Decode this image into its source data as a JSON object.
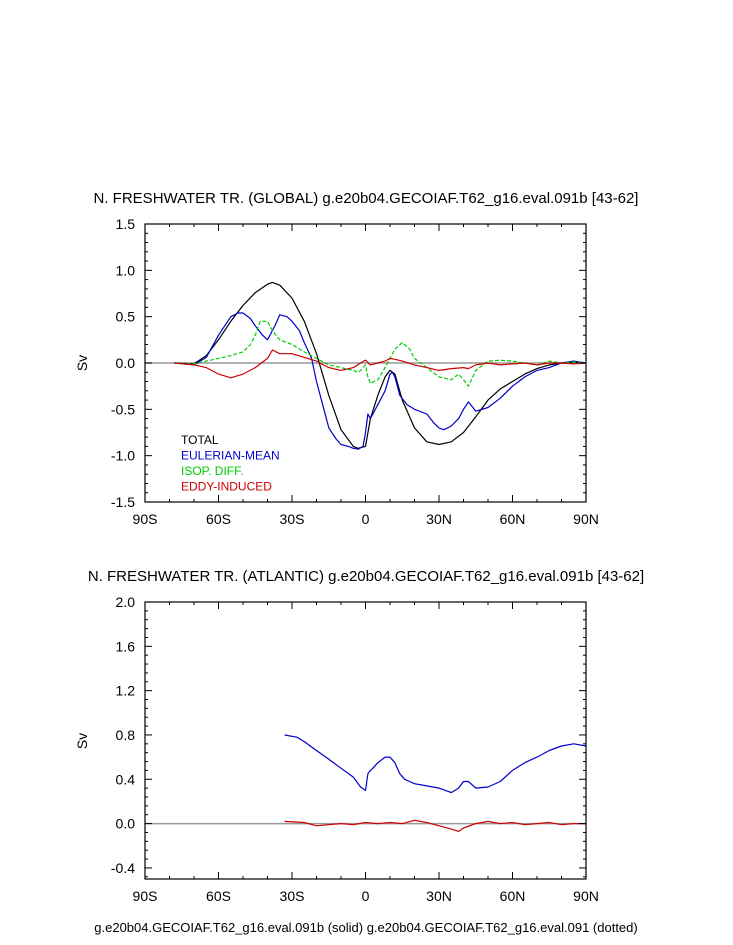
{
  "chart_data": [
    {
      "type": "line",
      "title": "N. FRESHWATER TR. (GLOBAL) g.e20b04.GECOIAF.T62_g16.eval.091b [43-62]",
      "xlabel": "",
      "ylabel": "Sv",
      "xlim": [
        -90,
        90
      ],
      "ylim": [
        -1.5,
        1.5
      ],
      "xticks": [
        -90,
        -60,
        -30,
        0,
        30,
        60,
        90
      ],
      "xtick_labels": [
        "90S",
        "60S",
        "30S",
        "0",
        "30N",
        "60N",
        "90N"
      ],
      "yticks": [
        -1.5,
        -1.0,
        -0.5,
        0.0,
        0.5,
        1.0,
        1.5
      ],
      "ytick_labels": [
        "-1.5",
        "-1.0",
        "-0.5",
        "0.0",
        "0.5",
        "1.0",
        "1.5"
      ],
      "zero_line": true,
      "legend_position": "lower-left",
      "series": [
        {
          "name": "TOTAL",
          "color": "#000000",
          "style": "solid",
          "x": [
            -78,
            -70,
            -65,
            -60,
            -55,
            -50,
            -45,
            -40,
            -38,
            -35,
            -30,
            -25,
            -20,
            -15,
            -10,
            -5,
            -3,
            0,
            2,
            5,
            8,
            10,
            12,
            15,
            20,
            25,
            30,
            35,
            40,
            45,
            50,
            55,
            60,
            65,
            70,
            75,
            80,
            85,
            90
          ],
          "y": [
            0,
            -0.01,
            0.08,
            0.25,
            0.45,
            0.62,
            0.76,
            0.85,
            0.87,
            0.84,
            0.7,
            0.45,
            0.1,
            -0.35,
            -0.72,
            -0.9,
            -0.92,
            -0.9,
            -0.6,
            -0.35,
            -0.15,
            -0.08,
            -0.12,
            -0.4,
            -0.7,
            -0.85,
            -0.88,
            -0.85,
            -0.75,
            -0.58,
            -0.4,
            -0.28,
            -0.2,
            -0.12,
            -0.06,
            -0.02,
            0.0,
            0.01,
            0.0
          ]
        },
        {
          "name": "EULERIAN-MEAN",
          "color": "#0000cc",
          "style": "solid",
          "x": [
            -78,
            -70,
            -65,
            -60,
            -55,
            -52,
            -50,
            -47,
            -45,
            -42,
            -40,
            -37,
            -35,
            -32,
            -30,
            -27,
            -25,
            -22,
            -20,
            -17,
            -15,
            -12,
            -10,
            -7,
            -5,
            -3,
            -1,
            0,
            1,
            2,
            3,
            5,
            8,
            10,
            11,
            12,
            14,
            17,
            20,
            25,
            28,
            30,
            32,
            35,
            38,
            40,
            42,
            45,
            50,
            55,
            60,
            65,
            70,
            75,
            80,
            85,
            90
          ],
          "y": [
            0,
            -0.02,
            0.06,
            0.3,
            0.5,
            0.54,
            0.54,
            0.48,
            0.4,
            0.3,
            0.25,
            0.4,
            0.52,
            0.5,
            0.45,
            0.35,
            0.22,
            0.05,
            -0.2,
            -0.5,
            -0.7,
            -0.82,
            -0.88,
            -0.9,
            -0.92,
            -0.93,
            -0.9,
            -0.75,
            -0.55,
            -0.6,
            -0.55,
            -0.45,
            -0.3,
            -0.12,
            -0.1,
            -0.15,
            -0.35,
            -0.45,
            -0.5,
            -0.55,
            -0.65,
            -0.7,
            -0.72,
            -0.68,
            -0.6,
            -0.5,
            -0.42,
            -0.52,
            -0.48,
            -0.38,
            -0.25,
            -0.15,
            -0.08,
            -0.05,
            0.0,
            0.02,
            0.0
          ]
        },
        {
          "name": "ISOP. DIFF.",
          "color": "#00cc00",
          "style": "dashed",
          "x": [
            -78,
            -70,
            -65,
            -60,
            -55,
            -50,
            -47,
            -45,
            -43,
            -40,
            -38,
            -35,
            -30,
            -25,
            -20,
            -15,
            -10,
            -5,
            -3,
            -2,
            -1,
            0,
            1,
            2,
            5,
            8,
            10,
            12,
            15,
            18,
            20,
            25,
            30,
            35,
            38,
            40,
            42,
            45,
            50,
            55,
            60,
            65,
            70,
            75,
            80,
            85,
            90
          ],
          "y": [
            0,
            -0.01,
            0.02,
            0.05,
            0.08,
            0.12,
            0.2,
            0.3,
            0.45,
            0.45,
            0.35,
            0.25,
            0.2,
            0.12,
            0.05,
            -0.02,
            -0.05,
            -0.08,
            -0.1,
            -0.08,
            -0.05,
            -0.02,
            -0.15,
            -0.22,
            -0.18,
            -0.05,
            0.05,
            0.15,
            0.22,
            0.15,
            0.05,
            -0.05,
            -0.15,
            -0.18,
            -0.12,
            -0.18,
            -0.25,
            -0.08,
            0.02,
            0.03,
            0.02,
            0.0,
            -0.02,
            0.02,
            0.0,
            0.01,
            0.0
          ]
        },
        {
          "name": "EDDY-INDUCED",
          "color": "#cc0000",
          "style": "solid",
          "x": [
            -78,
            -70,
            -65,
            -60,
            -55,
            -50,
            -45,
            -40,
            -38,
            -35,
            -30,
            -25,
            -20,
            -15,
            -10,
            -5,
            -2,
            0,
            2,
            5,
            8,
            10,
            12,
            15,
            20,
            25,
            30,
            35,
            40,
            42,
            45,
            50,
            55,
            60,
            65,
            70,
            75,
            80,
            85,
            90
          ],
          "y": [
            0,
            -0.02,
            -0.05,
            -0.12,
            -0.16,
            -0.12,
            -0.05,
            0.05,
            0.14,
            0.1,
            0.1,
            0.06,
            0.02,
            -0.05,
            -0.08,
            -0.05,
            0.0,
            0.03,
            -0.02,
            0.0,
            0.02,
            0.05,
            0.04,
            0.02,
            -0.02,
            -0.05,
            -0.08,
            -0.06,
            -0.05,
            -0.06,
            -0.02,
            0.0,
            -0.02,
            -0.01,
            0.0,
            -0.02,
            0.0,
            0.0,
            -0.01,
            0.0
          ]
        }
      ]
    },
    {
      "type": "line",
      "title": "N. FRESHWATER TR. (ATLANTIC) g.e20b04.GECOIAF.T62_g16.eval.091b [43-62]",
      "xlabel": "",
      "ylabel": "Sv",
      "xlim": [
        -90,
        90
      ],
      "ylim": [
        -0.5,
        2.0
      ],
      "xticks": [
        -90,
        -60,
        -30,
        0,
        30,
        60,
        90
      ],
      "xtick_labels": [
        "90S",
        "60S",
        "30S",
        "0",
        "30N",
        "60N",
        "90N"
      ],
      "yticks": [
        -0.4,
        0.0,
        0.4,
        0.8,
        1.2,
        1.6,
        2.0
      ],
      "ytick_labels": [
        "-0.4",
        "0.0",
        "0.4",
        "0.8",
        "1.2",
        "1.6",
        "2.0"
      ],
      "zero_line": true,
      "series": [
        {
          "name": "",
          "color": "#0000cc",
          "style": "solid",
          "x": [
            -33,
            -28,
            -25,
            -20,
            -15,
            -10,
            -5,
            -2,
            0,
            1,
            2,
            3,
            5,
            8,
            10,
            12,
            14,
            16,
            18,
            20,
            25,
            30,
            35,
            38,
            40,
            42,
            45,
            50,
            55,
            60,
            65,
            68,
            70,
            75,
            80,
            85,
            90
          ],
          "y": [
            0.8,
            0.78,
            0.74,
            0.66,
            0.58,
            0.5,
            0.42,
            0.33,
            0.3,
            0.45,
            0.48,
            0.5,
            0.55,
            0.6,
            0.6,
            0.55,
            0.45,
            0.4,
            0.38,
            0.36,
            0.34,
            0.32,
            0.28,
            0.32,
            0.38,
            0.38,
            0.32,
            0.33,
            0.38,
            0.48,
            0.55,
            0.58,
            0.6,
            0.66,
            0.7,
            0.72,
            0.7
          ]
        },
        {
          "name": "",
          "color": "#cc0000",
          "style": "solid",
          "x": [
            -33,
            -25,
            -20,
            -15,
            -10,
            -5,
            0,
            5,
            10,
            15,
            20,
            25,
            30,
            35,
            38,
            40,
            45,
            50,
            55,
            60,
            65,
            70,
            75,
            80,
            85,
            90
          ],
          "y": [
            0.02,
            0.01,
            -0.02,
            -0.01,
            0.0,
            -0.01,
            0.01,
            0.0,
            0.01,
            0.0,
            0.03,
            0.01,
            -0.02,
            -0.05,
            -0.07,
            -0.04,
            0.0,
            0.02,
            0.0,
            0.01,
            -0.01,
            0.0,
            0.01,
            -0.01,
            0.0,
            0.0
          ]
        }
      ]
    }
  ],
  "footer": "g.e20b04.GECOIAF.T62_g16.eval.091b (solid) g.e20b04.GECOIAF.T62_g16.eval.091 (dotted)"
}
